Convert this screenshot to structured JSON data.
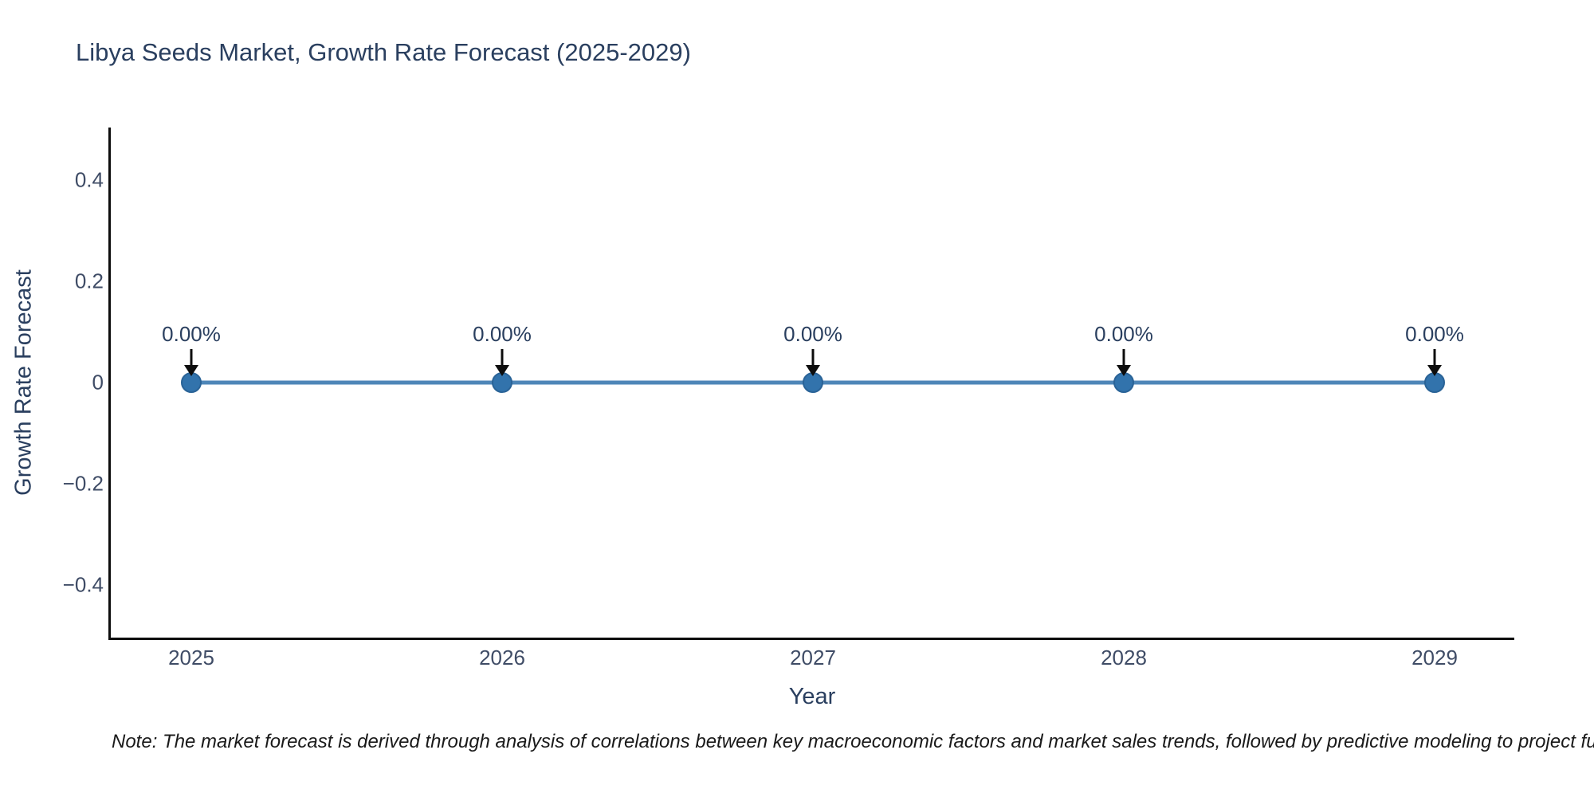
{
  "chart_data": {
    "type": "line",
    "title": "Libya Seeds Market, Growth Rate Forecast (2025-2029)",
    "xlabel": "Year",
    "ylabel": "Growth Rate Forecast",
    "x": [
      2025,
      2026,
      2027,
      2028,
      2029
    ],
    "series": [
      {
        "name": "Growth Rate Forecast",
        "values": [
          0,
          0,
          0,
          0,
          0
        ]
      }
    ],
    "point_labels": [
      "0.00%",
      "0.00%",
      "0.00%",
      "0.00%",
      "0.00%"
    ],
    "x_tick_labels": [
      "2025",
      "2026",
      "2027",
      "2028",
      "2029"
    ],
    "y_ticks": [
      {
        "label": "0.4",
        "value": 0.4
      },
      {
        "label": "0.2",
        "value": 0.2
      },
      {
        "label": "0",
        "value": 0
      },
      {
        "label": "−0.2",
        "value": -0.2
      },
      {
        "label": "−0.4",
        "value": -0.4
      }
    ],
    "ylim": [
      -0.5,
      0.5
    ],
    "grid": false,
    "legend": false,
    "annotations_have_arrows": true,
    "colors": {
      "line": "#4e86b8",
      "marker_fill": "#3273ac",
      "marker_edge": "#2a6397",
      "arrow": "#0d0d0d",
      "axis_line": "#0d0d0d",
      "title_text": "#2a3f5f",
      "tick_text": "#3f4c66"
    }
  },
  "footer": {
    "note": "Note: The market forecast is derived through analysis of correlations between key macroeconomic factors and market sales trends, followed by predictive modeling to project future sa"
  }
}
